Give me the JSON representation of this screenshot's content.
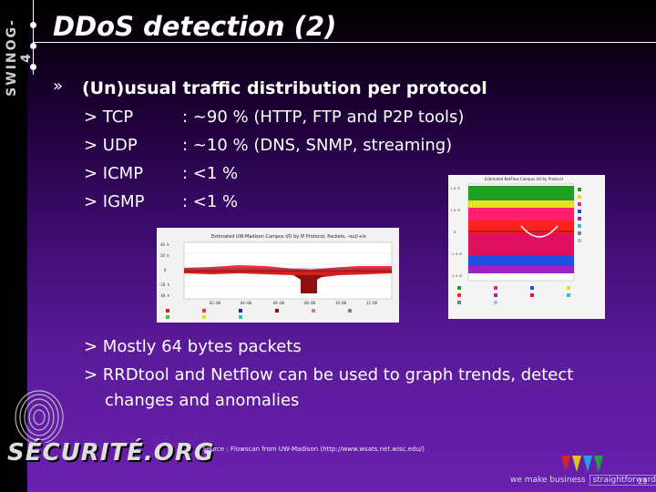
{
  "sidebar": {
    "text": "SWINOG-4"
  },
  "slide": {
    "title": "DDoS detection (2)",
    "bullet_glyph": "»",
    "heading": "(Un)usual traffic distribution per protocol",
    "protocols": [
      {
        "name": "> TCP",
        "desc": ": ~90 % (HTTP, FTP and P2P tools)"
      },
      {
        "name": "> UDP",
        "desc": ": ~10 % (DNS, SNMP, streaming)"
      },
      {
        "name": "> ICMP",
        "desc": ": <1 %"
      },
      {
        "name": "> IGMP",
        "desc": ": <1 %"
      }
    ],
    "bullets2": [
      "> Mostly 64 bytes packets",
      "> RRDtool and Netflow can be used to graph trends, detect",
      "changes and anomalies"
    ],
    "source": "Source : Flowscan from UW-Madison (http://www.wsats.net.wisc.edu/)",
    "logo": "SÉCURITÉ.ORG",
    "footer_left": "we make business",
    "footer_right": "straightforward",
    "page": "23"
  },
  "chart_left": {
    "title": "Estimated UW-Madison Campus I/O by IP Protocol, Packets, -out/+in"
  },
  "chart_right": {
    "title": "Estimated NetFlow Campus I/O by Protocol"
  }
}
